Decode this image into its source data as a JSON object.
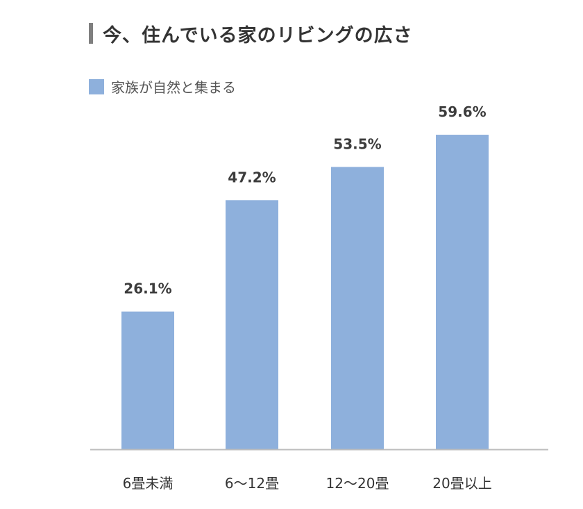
{
  "title": "今、住んでいる家のリビングの広さ",
  "chart_data": {
    "type": "bar",
    "categories": [
      "6畳未満",
      "6～12畳",
      "12～20畳",
      "20畳以上"
    ],
    "series": [
      {
        "name": "家族が自然と集まる",
        "values": [
          26.1,
          47.2,
          53.5,
          59.6
        ]
      }
    ],
    "value_labels": [
      "26.1%",
      "47.2%",
      "53.5%",
      "59.6%"
    ],
    "ylim": [
      0,
      80
    ],
    "grid": false,
    "legend_position": "top-left",
    "colors": {
      "bar": "#8eb0dc",
      "title_accent": "#7f7f7f",
      "axis": "#bdbdbd"
    }
  }
}
